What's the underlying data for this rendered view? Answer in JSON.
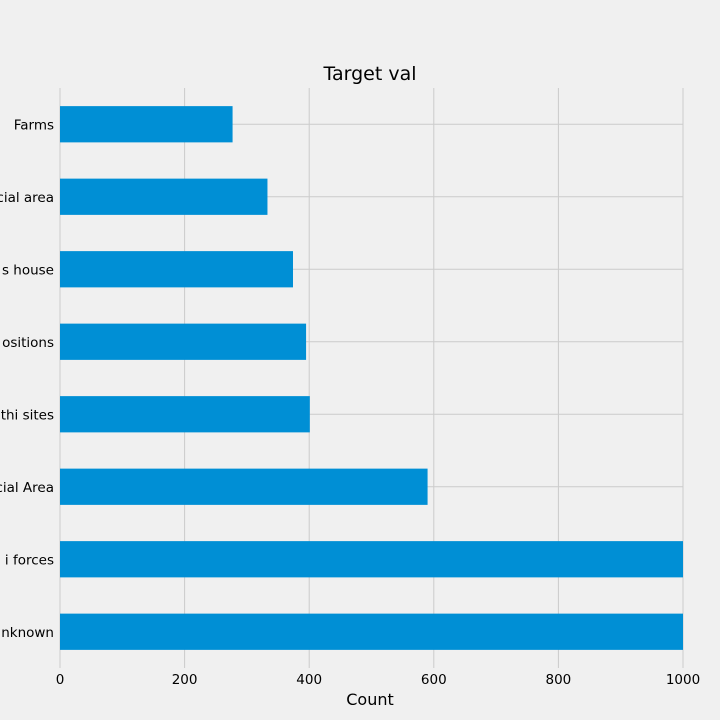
{
  "chart_data": {
    "type": "bar",
    "orientation": "horizontal",
    "title": "Target val",
    "xlabel": "Count",
    "ylabel": "",
    "categories": [
      "Farms",
      "cial area",
      "s house",
      "ositions",
      "thi sites",
      "cial Area",
      "i forces",
      "nknown"
    ],
    "values": [
      277,
      333,
      374,
      395,
      401,
      590,
      1000,
      1000
    ],
    "xlim": [
      0,
      1000
    ],
    "xticks": [
      0,
      200,
      400,
      600,
      800,
      1000
    ],
    "grid": true,
    "bar_color": "#008fd5",
    "background": "#f0f0f0"
  }
}
